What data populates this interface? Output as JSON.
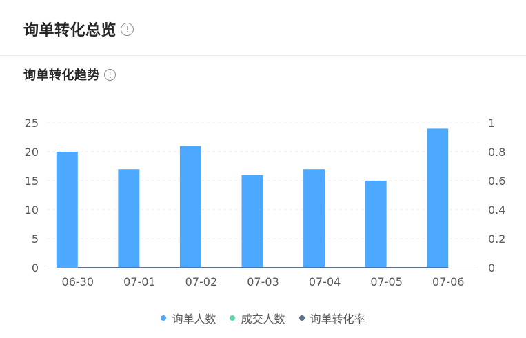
{
  "header": {
    "title": "询单转化总览"
  },
  "section": {
    "title": "询单转化趋势"
  },
  "colors": {
    "inquiry": "#4da8ff",
    "deal": "#5ad8a6",
    "rate": "#5d7092",
    "grid": "#e8e8e8",
    "axis_text": "#595959"
  },
  "chart_data": {
    "type": "bar",
    "categories": [
      "06-30",
      "07-01",
      "07-02",
      "07-03",
      "07-04",
      "07-05",
      "07-06"
    ],
    "series": [
      {
        "name": "询单人数",
        "type": "bar",
        "axis": "left",
        "values": [
          20,
          17,
          21,
          16,
          17,
          15,
          24
        ]
      },
      {
        "name": "成交人数",
        "type": "bar",
        "axis": "left",
        "values": [
          0,
          0,
          0,
          0,
          0,
          0,
          0
        ]
      },
      {
        "name": "询单转化率",
        "type": "line",
        "axis": "right",
        "values": [
          0,
          0,
          0,
          0,
          0,
          0,
          0
        ]
      }
    ],
    "y_left": {
      "min": 0,
      "max": 25,
      "ticks": [
        "0",
        "5",
        "10",
        "15",
        "20",
        "25"
      ]
    },
    "y_right": {
      "min": 0,
      "max": 1,
      "ticks": [
        "0",
        "0.2",
        "0.4",
        "0.6",
        "0.8",
        "1"
      ]
    },
    "grid": true,
    "legend_position": "bottom"
  }
}
